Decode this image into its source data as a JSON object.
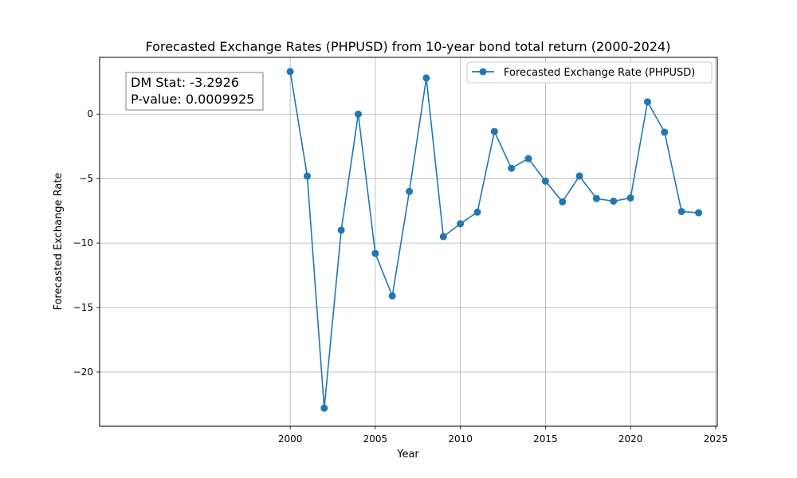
{
  "chart_data": {
    "type": "line",
    "title": "Forecasted Exchange Rates (PHPUSD) from 10-year bond total return (2000-2024)",
    "xlabel": "Year",
    "ylabel": "Forecasted Exchange Rate",
    "xlim": [
      1988.8,
      2025.1
    ],
    "ylim": [
      -24.2,
      4.4
    ],
    "xticks": [
      2000,
      2005,
      2010,
      2015,
      2020,
      2025
    ],
    "yticks": [
      -20,
      -15,
      -10,
      -5,
      0
    ],
    "ytick_labels": [
      "−20",
      "−15",
      "−10",
      "−5",
      "0"
    ],
    "grid": true,
    "legend_position": "top-right",
    "series": [
      {
        "name": "Forecasted Exchange Rate (PHPUSD)",
        "color": "#1f77b4",
        "marker": "circle",
        "x": [
          2000,
          2001,
          2002,
          2003,
          2004,
          2005,
          2006,
          2007,
          2008,
          2009,
          2010,
          2011,
          2012,
          2013,
          2014,
          2015,
          2016,
          2017,
          2018,
          2019,
          2020,
          2021,
          2022,
          2023,
          2024
        ],
        "y": [
          3.3,
          -4.8,
          -22.8,
          -9.0,
          0.0,
          -10.8,
          -14.1,
          -6.0,
          2.8,
          -9.5,
          -8.5,
          -7.6,
          -1.35,
          -4.2,
          -3.45,
          -5.2,
          -6.8,
          -4.8,
          -6.55,
          -6.75,
          -6.5,
          0.95,
          -1.4,
          -7.55,
          -7.65
        ]
      }
    ],
    "annotation": {
      "lines": [
        "DM Stat: -3.2926",
        "P-value: 0.0009925"
      ],
      "position": "top-left"
    }
  }
}
